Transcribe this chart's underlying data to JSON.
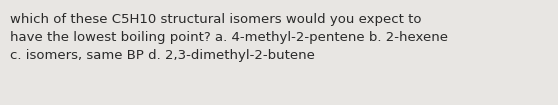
{
  "text": "which of these C5H10 structural isomers would you expect to\nhave the lowest boiling point? a. 4-methyl-2-pentene b. 2-hexene\nc. isomers, same BP d. 2,3-dimethyl-2-butene",
  "background_color": "#e8e6e3",
  "text_color": "#2a2a2a",
  "font_size": 9.5,
  "font_family": "DejaVu Sans",
  "fig_width": 5.58,
  "fig_height": 1.05,
  "dpi": 100
}
